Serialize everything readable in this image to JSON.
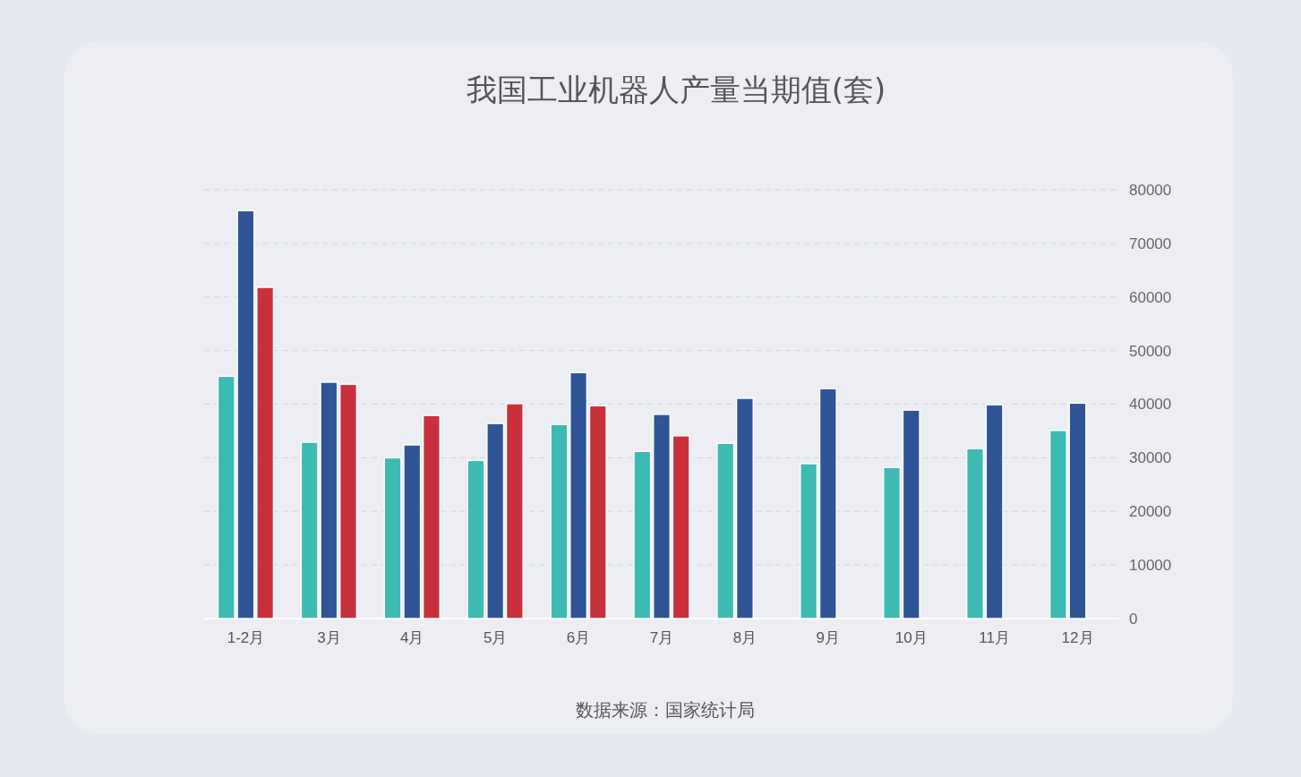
{
  "chart_data": {
    "type": "bar",
    "title": "我国工业机器人产量当期值(套)",
    "categories": [
      "1-2月",
      "3月",
      "4月",
      "5月",
      "6月",
      "7月",
      "8月",
      "9月",
      "10月",
      "11月",
      "12月"
    ],
    "series": [
      {
        "color": "#3dbab2",
        "values": [
          45200,
          32900,
          30000,
          29500,
          36200,
          31200,
          32700,
          28900,
          28200,
          31700,
          35100
        ]
      },
      {
        "color": "#2f5597",
        "values": [
          76100,
          44100,
          32400,
          36400,
          45900,
          38100,
          41100,
          42900,
          38900,
          39900,
          40200
        ]
      },
      {
        "color": "#c8313c",
        "values": [
          61800,
          43700,
          37900,
          40100,
          39700,
          34100,
          null,
          null,
          null,
          null,
          null
        ]
      }
    ],
    "ylim": [
      0,
      80000
    ],
    "yticks": [
      0,
      10000,
      20000,
      30000,
      40000,
      50000,
      60000,
      70000,
      80000
    ],
    "grid": "y",
    "annotations": [
      "数据来源：国家统计局"
    ]
  }
}
